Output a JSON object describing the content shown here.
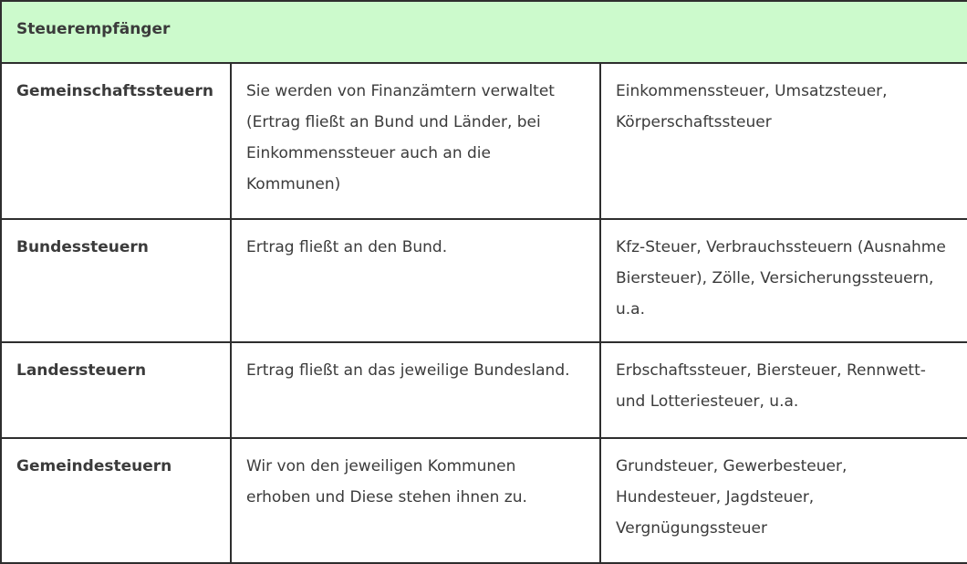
{
  "table": {
    "header": "Steuerempfänger",
    "rows": [
      {
        "category": "Gemeinschaftssteuern",
        "description": "Sie werden von Finanzämtern verwaltet (Ertrag fließt an Bund und Länder, bei Einkommenssteuer auch an die Kommunen)",
        "examples": "Einkommenssteuer, Umsatzsteuer, Körperschaftssteuer"
      },
      {
        "category": "Bundessteuern",
        "description": "Ertrag fließt an den Bund.",
        "examples": "Kfz-Steuer, Verbrauchssteuern (Ausnahme Biersteuer), Zölle, Versicherungssteuern, u.a."
      },
      {
        "category": "Landessteuern",
        "description": "Ertrag fließt an das jeweilige Bundesland.",
        "examples": "Erbschaftssteuer, Biersteuer, Rennwett- und Lotteriesteuer, u.a."
      },
      {
        "category": "Gemeindesteuern",
        "description": "Wir von den jeweiligen Kommunen erhoben und Diese stehen ihnen zu.",
        "examples": "Grundsteuer, Gewerbesteuer, Hundesteuer, Jagdsteuer, Vergnügungssteuer"
      }
    ],
    "colors": {
      "header_bg": "#ccfacc",
      "border": "#2e2e2e",
      "body_text": "#3b3b3b",
      "bold_text": "#262626"
    }
  }
}
